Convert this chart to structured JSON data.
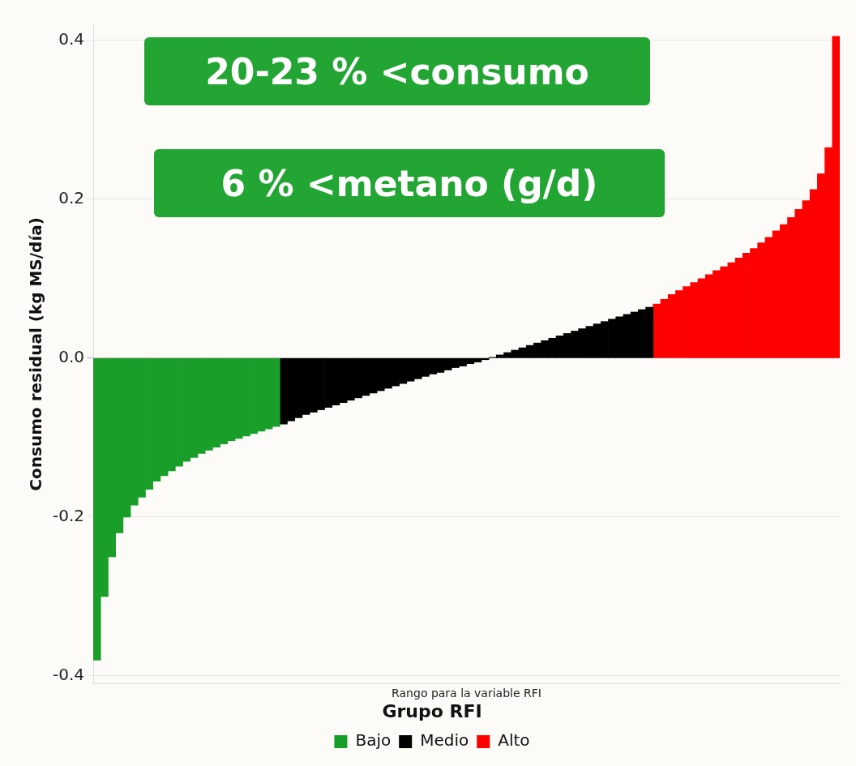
{
  "chart_data": {
    "type": "bar",
    "ylabel": "Consumo residual (kg MS/día)",
    "xlabel": "Rango para la variable RFI",
    "legend_title": "Grupo RFI",
    "legend": "bottom",
    "grid": "y",
    "tick_labels": "y",
    "ylim": [
      -0.41,
      0.42
    ],
    "yticks": [
      -0.4,
      -0.2,
      {
        "value": 0,
        "label": "0.0"
      },
      0.2,
      0.4
    ],
    "annotations": [
      "20-23 % <consumo",
      "6 % <metano (g/d)"
    ],
    "categories": [
      null,
      null,
      null,
      null,
      null,
      null,
      null,
      null,
      null,
      null,
      null,
      null,
      null,
      null,
      null,
      null,
      null,
      null,
      null,
      null,
      null,
      null,
      null,
      null,
      null,
      null,
      null,
      null,
      null,
      null,
      null,
      null,
      null,
      null,
      null,
      null,
      null,
      null,
      null,
      null,
      null,
      null,
      null,
      null,
      null,
      null,
      null,
      null,
      null,
      null,
      null,
      null,
      null,
      null,
      null,
      null,
      null,
      null,
      null,
      null,
      null,
      null,
      null,
      null,
      null,
      null,
      null,
      null,
      null,
      null,
      null,
      null,
      null,
      null,
      null,
      null,
      null,
      null,
      null,
      null,
      null,
      null,
      null,
      null,
      null,
      null,
      null,
      null,
      null,
      null,
      null,
      null,
      null,
      null,
      null,
      null,
      null,
      null,
      null,
      null
    ],
    "series": [
      {
        "name": "Bajo",
        "color": "#1a9e2a",
        "values": [
          -0.38,
          -0.3,
          -0.25,
          -0.22,
          -0.2,
          -0.185,
          -0.175,
          -0.165,
          -0.155,
          -0.148,
          -0.142,
          -0.136,
          -0.13,
          -0.125,
          -0.12,
          -0.116,
          -0.112,
          -0.108,
          -0.104,
          -0.101,
          -0.098,
          -0.095,
          -0.092,
          -0.089,
          -0.086,
          null,
          null,
          null,
          null,
          null,
          null,
          null,
          null,
          null,
          null,
          null,
          null,
          null,
          null,
          null,
          null,
          null,
          null,
          null,
          null,
          null,
          null,
          null,
          null,
          null,
          null,
          null,
          null,
          null,
          null,
          null,
          null,
          null,
          null,
          null,
          null,
          null,
          null,
          null,
          null,
          null,
          null,
          null,
          null,
          null,
          null,
          null,
          null,
          null,
          null,
          null,
          null,
          null,
          null,
          null,
          null,
          null,
          null,
          null,
          null,
          null,
          null,
          null,
          null,
          null,
          null,
          null,
          null,
          null,
          null,
          null,
          null,
          null,
          null,
          null
        ]
      },
      {
        "name": "Medio",
        "color": "#000000",
        "values": [
          null,
          null,
          null,
          null,
          null,
          null,
          null,
          null,
          null,
          null,
          null,
          null,
          null,
          null,
          null,
          null,
          null,
          null,
          null,
          null,
          null,
          null,
          null,
          null,
          null,
          -0.083,
          -0.079,
          -0.075,
          -0.071,
          -0.068,
          -0.065,
          -0.062,
          -0.059,
          -0.056,
          -0.053,
          -0.05,
          -0.047,
          -0.044,
          -0.041,
          -0.038,
          -0.035,
          -0.032,
          -0.029,
          -0.026,
          -0.023,
          -0.02,
          -0.018,
          -0.015,
          -0.012,
          -0.01,
          -0.007,
          -0.005,
          -0.002,
          0.001,
          0.004,
          0.007,
          0.01,
          0.013,
          0.016,
          0.019,
          0.022,
          0.025,
          0.028,
          0.031,
          0.034,
          0.037,
          0.04,
          0.043,
          0.046,
          0.049,
          0.052,
          0.055,
          0.058,
          0.061,
          0.064,
          null,
          null,
          null,
          null,
          null,
          null,
          null,
          null,
          null,
          null,
          null,
          null,
          null,
          null,
          null,
          null,
          null,
          null,
          null,
          null,
          null,
          null,
          null,
          null,
          null
        ]
      },
      {
        "name": "Alto",
        "color": "#ff0000",
        "values": [
          null,
          null,
          null,
          null,
          null,
          null,
          null,
          null,
          null,
          null,
          null,
          null,
          null,
          null,
          null,
          null,
          null,
          null,
          null,
          null,
          null,
          null,
          null,
          null,
          null,
          null,
          null,
          null,
          null,
          null,
          null,
          null,
          null,
          null,
          null,
          null,
          null,
          null,
          null,
          null,
          null,
          null,
          null,
          null,
          null,
          null,
          null,
          null,
          null,
          null,
          null,
          null,
          null,
          null,
          null,
          null,
          null,
          null,
          null,
          null,
          null,
          null,
          null,
          null,
          null,
          null,
          null,
          null,
          null,
          null,
          null,
          null,
          null,
          null,
          null,
          0.068,
          0.074,
          0.08,
          0.085,
          0.09,
          0.095,
          0.1,
          0.105,
          0.11,
          0.115,
          0.12,
          0.126,
          0.132,
          0.138,
          0.145,
          0.152,
          0.16,
          0.168,
          0.177,
          0.187,
          0.198,
          0.212,
          0.232,
          0.265,
          0.405
        ]
      }
    ]
  }
}
